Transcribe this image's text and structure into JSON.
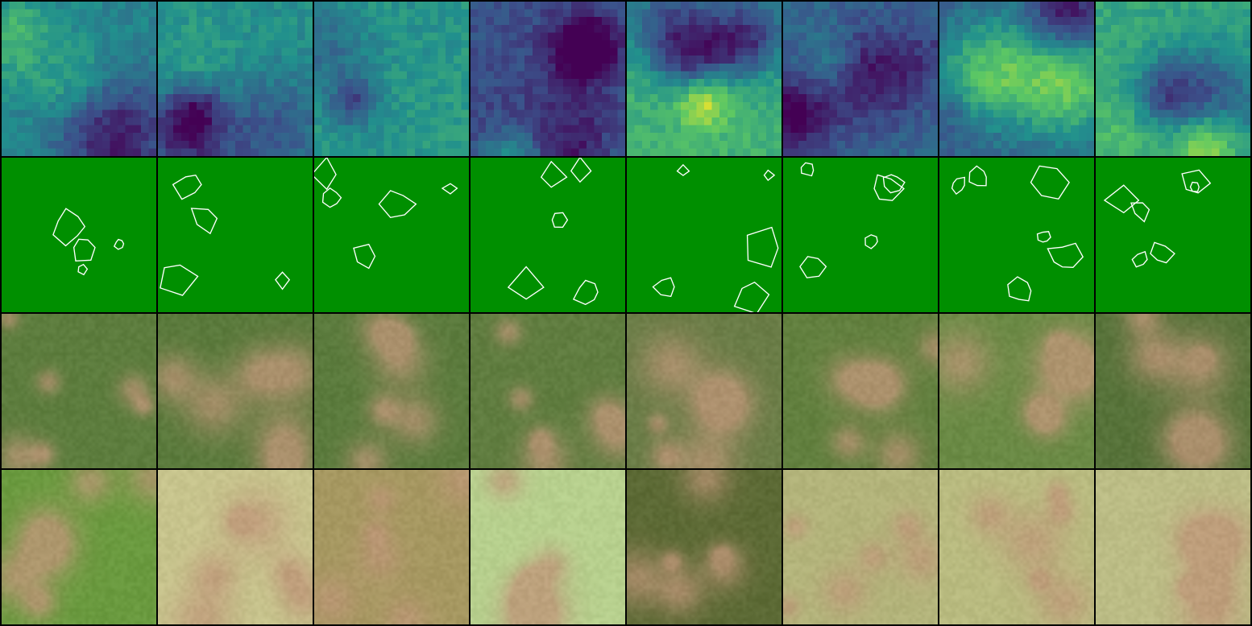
{
  "grid": {
    "columns": 8,
    "rows": [
      {
        "kind": "heatmap",
        "label": ""
      },
      {
        "kind": "outline-mask",
        "label": ""
      },
      {
        "kind": "predicted-imagery",
        "label": ""
      },
      {
        "kind": "satellite-imagery",
        "label": ""
      }
    ]
  },
  "colors": {
    "mask_background": "#008f00",
    "mask_outline": "#ffffff",
    "cell_border": "#000000",
    "heatmap_palette": [
      "#440154",
      "#3b528b",
      "#21908d",
      "#5dc863",
      "#fde725"
    ]
  },
  "tiles": [
    {
      "col": 1,
      "heat_seed": 11,
      "heat_bias": 0.45,
      "rgb_base": "#5d7d3e",
      "rgb2_base": "#6a9a3f"
    },
    {
      "col": 2,
      "heat_seed": 23,
      "heat_bias": 0.5,
      "rgb_base": "#5a7a3c",
      "rgb2_base": "#c7c48d"
    },
    {
      "col": 3,
      "heat_seed": 37,
      "heat_bias": 0.55,
      "rgb_base": "#5b7b3d",
      "rgb2_base": "#a69861"
    },
    {
      "col": 4,
      "heat_seed": 41,
      "heat_bias": 0.25,
      "rgb_base": "#607d40",
      "rgb2_base": "#b7d08e"
    },
    {
      "col": 5,
      "heat_seed": 53,
      "heat_bias": 0.65,
      "rgb_base": "#6a7d47",
      "rgb2_base": "#5c6a35"
    },
    {
      "col": 6,
      "heat_seed": 67,
      "heat_bias": 0.35,
      "rgb_base": "#62803f",
      "rgb2_base": "#b3b47b"
    },
    {
      "col": 7,
      "heat_seed": 79,
      "heat_bias": 0.3,
      "rgb_base": "#6a8a45",
      "rgb2_base": "#b9bb80"
    },
    {
      "col": 8,
      "heat_seed": 83,
      "heat_bias": 0.6,
      "rgb_base": "#57733a",
      "rgb2_base": "#bcbd86"
    }
  ]
}
